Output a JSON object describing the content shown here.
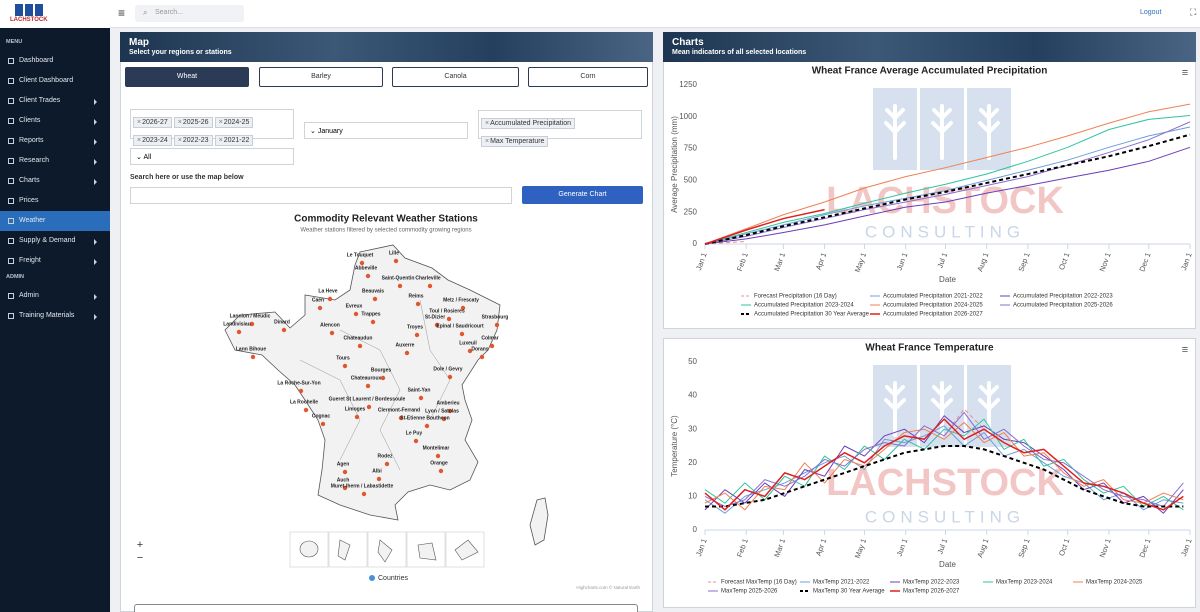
{
  "header": {
    "logo": "LACHSTOCK",
    "search_placeholder": "Search...",
    "logout": "Logout"
  },
  "sidebar": {
    "sections": [
      {
        "label": "MENU",
        "items": [
          {
            "label": "Dashboard",
            "submenu": false,
            "active": false
          },
          {
            "label": "Client Dashboard",
            "submenu": false,
            "active": false
          },
          {
            "label": "Client Trades",
            "submenu": true,
            "active": false
          },
          {
            "label": "Clients",
            "submenu": true,
            "active": false
          },
          {
            "label": "Reports",
            "submenu": true,
            "active": false
          },
          {
            "label": "Research",
            "submenu": true,
            "active": false
          },
          {
            "label": "Charts",
            "submenu": true,
            "active": false
          },
          {
            "label": "Prices",
            "submenu": false,
            "active": false
          },
          {
            "label": "Weather",
            "submenu": false,
            "active": true
          },
          {
            "label": "Supply & Demand",
            "submenu": true,
            "active": false
          },
          {
            "label": "Freight",
            "submenu": true,
            "active": false
          }
        ]
      },
      {
        "label": "ADMIN",
        "items": [
          {
            "label": "Admin",
            "submenu": true,
            "active": false
          },
          {
            "label": "Training Materials",
            "submenu": true,
            "active": false
          }
        ]
      }
    ]
  },
  "map_panel": {
    "title": "Map",
    "subtitle": "Select your regions or stations",
    "commodities": [
      {
        "label": "Wheat",
        "active": true
      },
      {
        "label": "Barley",
        "active": false
      },
      {
        "label": "Canola",
        "active": false
      },
      {
        "label": "Corn",
        "active": false
      }
    ],
    "seasons": [
      "2026-27",
      "2025-26",
      "2024-25",
      "2023-24",
      "2022-23",
      "2021-22"
    ],
    "month": "January",
    "indicators": [
      "Accumulated Precipitation",
      "Max Temperature"
    ],
    "region": "All",
    "search_label": "Search here or use the map below",
    "button": "Generate Chart",
    "map": {
      "title": "Commodity Relevant Weather Stations",
      "subtitle": "Weather stations filtered by selected commodity growing regions",
      "stations": [
        "Lille",
        "Le Touquet",
        "Abbeville",
        "Saint-Quentin",
        "Charleville",
        "Beauvais",
        "Reims",
        "La Heve",
        "Caen",
        "Metz / Frescaty",
        "Evreux",
        "Toul / Rosieres",
        "Trappes",
        "Strasbourg",
        "St-Dizier",
        "Lannion / Meudic",
        "Dinard",
        "Landivisiau",
        "Alencon",
        "Troyes",
        "Epinal / Saudricourt",
        "Colmar",
        "Chateaudun",
        "Luxeuil",
        "Auxerre",
        "Dorans",
        "Lann Bihoue",
        "Tours",
        "Bourges",
        "Dole / Gevry",
        "Chateauroux",
        "La Roche-Sur-Yon",
        "Saint-Yan",
        "La Rochelle",
        "Gueret St Laurent / Bordessoule",
        "Amberieu",
        "Limoges",
        "Clermont-Ferrand",
        "Lyon / Satolas",
        "Cognac",
        "St-Etienne Boutheon",
        "Le Puy",
        "Montelimar",
        "Rodez",
        "Agen",
        "Orange",
        "Albi",
        "Auch",
        "Muret-lherm / Labastidette"
      ],
      "legend": "Countries",
      "credit": "Highcharts.com © Natural Earth",
      "zoom_in": "+",
      "zoom_out": "−"
    }
  },
  "charts_panel": {
    "title": "Charts",
    "subtitle": "Mean indicators of all selected locations",
    "watermark": [
      "LACHSTOCK",
      "CONSULTING"
    ]
  },
  "chart_data": [
    {
      "type": "line",
      "title": "Wheat France Average Accumulated Precipitation",
      "xlabel": "Date",
      "ylabel": "Average Precipitation (mm)",
      "x": [
        0,
        31,
        59,
        90,
        120,
        151,
        181,
        212,
        243,
        273,
        304,
        334,
        365
      ],
      "xlim": [
        0,
        365
      ],
      "xticks": [
        {
          "value": 0,
          "label": "Jan 1"
        },
        {
          "value": 31,
          "label": "Feb 1"
        },
        {
          "value": 59,
          "label": "Mar 1"
        },
        {
          "value": 90,
          "label": "Apr 1"
        },
        {
          "value": 120,
          "label": "May 1"
        },
        {
          "value": 151,
          "label": "Jun 1"
        },
        {
          "value": 181,
          "label": "Jul 1"
        },
        {
          "value": 212,
          "label": "Aug 1"
        },
        {
          "value": 243,
          "label": "Sep 1"
        },
        {
          "value": 273,
          "label": "Oct 1"
        },
        {
          "value": 304,
          "label": "Nov 1"
        },
        {
          "value": 334,
          "label": "Dec 1"
        },
        {
          "value": 365,
          "label": "Jan 1"
        }
      ],
      "ylim": [
        0,
        1250
      ],
      "yticks": [
        0,
        250,
        500,
        750,
        1000,
        1250
      ],
      "grid": false,
      "series": [
        {
          "name": "Forecast Precipitation (16 Day)",
          "color": "#e8908a",
          "dashed": true,
          "width": 1,
          "values": [
            0,
            20,
            null,
            null,
            null,
            null,
            null,
            null,
            null,
            null,
            null,
            null,
            null
          ]
        },
        {
          "name": "Accumulated Precipitation 2021-2022",
          "color": "#6c9fd9",
          "dashed": false,
          "width": 1,
          "values": [
            0,
            80,
            150,
            230,
            300,
            360,
            420,
            500,
            580,
            660,
            760,
            850,
            920
          ]
        },
        {
          "name": "Accumulated Precipitation 2022-2023",
          "color": "#6a3db8",
          "dashed": false,
          "width": 1,
          "values": [
            0,
            40,
            90,
            150,
            220,
            290,
            330,
            400,
            460,
            520,
            580,
            650,
            760
          ]
        },
        {
          "name": "Accumulated Precipitation 2023-2024",
          "color": "#2ec4a0",
          "dashed": false,
          "width": 1,
          "values": [
            0,
            90,
            170,
            240,
            320,
            400,
            470,
            550,
            650,
            760,
            900,
            980,
            1010
          ]
        },
        {
          "name": "Accumulated Precipitation 2024-2025",
          "color": "#f08050",
          "dashed": false,
          "width": 1,
          "values": [
            0,
            120,
            230,
            330,
            440,
            530,
            600,
            680,
            760,
            850,
            950,
            1040,
            1100
          ]
        },
        {
          "name": "Accumulated Precipitation 2025-2026",
          "color": "#8a6fd0",
          "dashed": false,
          "width": 1,
          "values": [
            0,
            60,
            130,
            200,
            270,
            330,
            390,
            460,
            530,
            620,
            720,
            820,
            960
          ]
        },
        {
          "name": "Accumulated Precipitation 30 Year Average",
          "color": "#000000",
          "dashed": true,
          "width": 2,
          "values": [
            0,
            70,
            140,
            210,
            280,
            350,
            410,
            480,
            550,
            620,
            690,
            770,
            860
          ]
        },
        {
          "name": "Accumulated Precipitation 2026-2027",
          "color": "#e02020",
          "dashed": false,
          "width": 1.5,
          "values": [
            0,
            110,
            200,
            270,
            null,
            null,
            null,
            null,
            null,
            null,
            null,
            null,
            null
          ]
        }
      ]
    },
    {
      "type": "line",
      "title": "Wheat France Temperature",
      "xlabel": "Date",
      "ylabel": "Temperature (°C)",
      "x": [
        0,
        15,
        30,
        45,
        60,
        75,
        90,
        105,
        120,
        135,
        150,
        165,
        180,
        195,
        210,
        225,
        240,
        255,
        270,
        285,
        300,
        315,
        330,
        345,
        360
      ],
      "xlim": [
        0,
        365
      ],
      "xticks": [
        {
          "value": 0,
          "label": "Jan 1"
        },
        {
          "value": 31,
          "label": "Feb 1"
        },
        {
          "value": 59,
          "label": "Mar 1"
        },
        {
          "value": 90,
          "label": "Apr 1"
        },
        {
          "value": 120,
          "label": "May 1"
        },
        {
          "value": 151,
          "label": "Jun 1"
        },
        {
          "value": 181,
          "label": "Jul 1"
        },
        {
          "value": 212,
          "label": "Aug 1"
        },
        {
          "value": 243,
          "label": "Sep 1"
        },
        {
          "value": 273,
          "label": "Oct 1"
        },
        {
          "value": 304,
          "label": "Nov 1"
        },
        {
          "value": 334,
          "label": "Dec 1"
        },
        {
          "value": 365,
          "label": "Jan 1"
        }
      ],
      "ylim": [
        0,
        50
      ],
      "yticks": [
        0,
        10,
        20,
        30,
        40,
        50
      ],
      "grid": false,
      "series": [
        {
          "name": "Forecast MaxTemp (16 Day)",
          "color": "#e8908a",
          "dashed": true,
          "width": 1,
          "values": [
            null,
            null,
            null,
            null,
            null,
            null,
            null,
            null,
            null,
            null,
            null,
            null,
            28,
            36,
            30,
            null,
            null,
            null,
            null,
            null,
            null,
            null,
            null,
            null,
            null
          ]
        },
        {
          "name": "MaxTemp 2021-2022",
          "color": "#6c9fd9",
          "dashed": false,
          "width": 1,
          "values": [
            9,
            5,
            10,
            12,
            14,
            17,
            20,
            22,
            18,
            27,
            26,
            28,
            31,
            25,
            29,
            22,
            24,
            20,
            16,
            14,
            9,
            11,
            6,
            9,
            8
          ]
        },
        {
          "name": "MaxTemp 2022-2023",
          "color": "#6a3db8",
          "dashed": false,
          "width": 1,
          "values": [
            6,
            12,
            8,
            14,
            10,
            18,
            16,
            25,
            22,
            28,
            30,
            26,
            34,
            29,
            31,
            27,
            26,
            22,
            18,
            12,
            14,
            8,
            10,
            5,
            12
          ]
        },
        {
          "name": "MaxTemp 2023-2024",
          "color": "#2ec4a0",
          "dashed": false,
          "width": 1,
          "values": [
            12,
            8,
            14,
            9,
            16,
            13,
            22,
            18,
            25,
            21,
            27,
            24,
            30,
            28,
            33,
            24,
            27,
            19,
            21,
            15,
            11,
            13,
            7,
            10,
            6
          ]
        },
        {
          "name": "MaxTemp 2024-2025",
          "color": "#f08050",
          "dashed": false,
          "width": 1,
          "values": [
            8,
            11,
            6,
            13,
            12,
            20,
            14,
            21,
            19,
            24,
            29,
            30,
            27,
            32,
            26,
            29,
            22,
            23,
            17,
            13,
            15,
            9,
            8,
            11,
            9
          ]
        },
        {
          "name": "MaxTemp 2025-2026",
          "color": "#8a6fd0",
          "dashed": false,
          "width": 1,
          "values": [
            10,
            7,
            9,
            15,
            13,
            16,
            21,
            19,
            24,
            26,
            25,
            31,
            28,
            35,
            27,
            30,
            25,
            21,
            20,
            16,
            12,
            10,
            9,
            7,
            14
          ]
        },
        {
          "name": "MaxTemp 30 Year Average",
          "color": "#000000",
          "dashed": true,
          "width": 2,
          "values": [
            7,
            7,
            8,
            9,
            11,
            13,
            15,
            17,
            19,
            21,
            23,
            24,
            25,
            25,
            24,
            22,
            20,
            18,
            15,
            12,
            10,
            8,
            7,
            7,
            7
          ]
        },
        {
          "name": "MaxTemp 2026-2027",
          "color": "#e02020",
          "dashed": false,
          "width": 1.5,
          "values": [
            11,
            6,
            12,
            10,
            17,
            15,
            19,
            23,
            20,
            25,
            28,
            27,
            33,
            27,
            30,
            26,
            23,
            24,
            19,
            14,
            13,
            11,
            8,
            6,
            10
          ]
        }
      ]
    }
  ]
}
